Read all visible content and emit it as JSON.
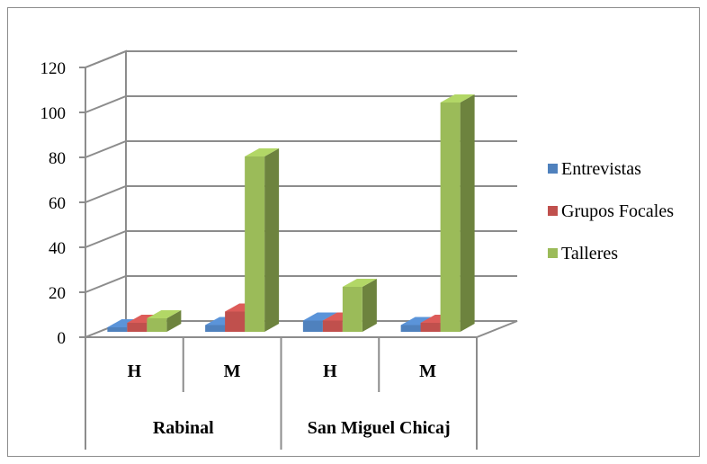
{
  "chart_data": {
    "type": "bar",
    "title": "",
    "xlabel": "",
    "ylabel": "",
    "ylim": [
      0,
      120
    ],
    "y_ticks": [
      "0",
      "20",
      "40",
      "60",
      "80",
      "100",
      "120"
    ],
    "categories": [
      "H",
      "M",
      "H",
      "M"
    ],
    "groups": [
      {
        "label": "Rabinal",
        "categories": [
          "H",
          "M"
        ]
      },
      {
        "label": "San Miguel Chicaj",
        "categories": [
          "H",
          "M"
        ]
      }
    ],
    "series": [
      {
        "name": "Entrevistas",
        "color": "#4f81bd",
        "values": [
          2,
          3,
          5,
          3
        ]
      },
      {
        "name": "Grupos Focales",
        "color": "#c0504d",
        "values": [
          4,
          9,
          5,
          4
        ]
      },
      {
        "name": "Talleres",
        "color": "#9bbb59",
        "values": [
          6,
          78,
          20,
          102
        ]
      }
    ],
    "grid": true,
    "legend": "right",
    "style": "3d-column"
  }
}
